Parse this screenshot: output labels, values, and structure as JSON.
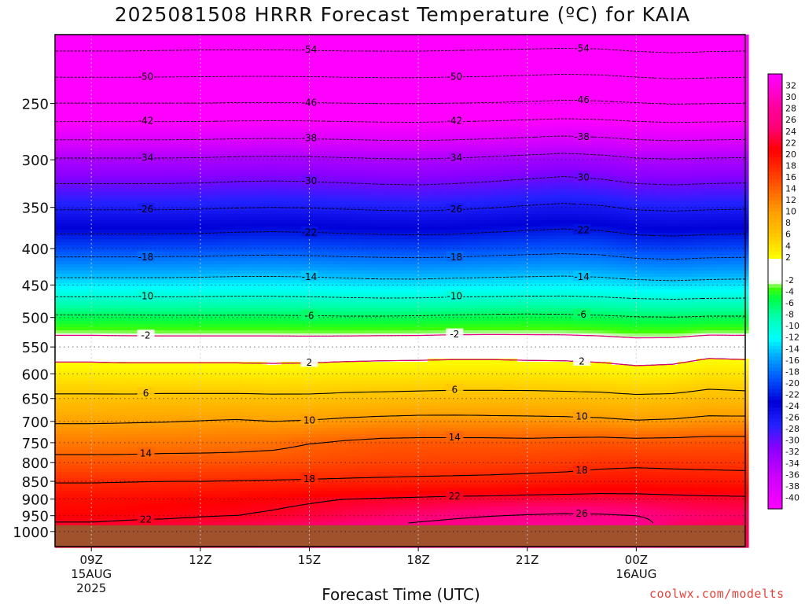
{
  "title": "2025081508 HRRR Forecast Temperature (ºC) for KAIA",
  "credit": "coolwx.com/modelts",
  "chart_data": {
    "type": "contour",
    "title": "2025081508 HRRR Forecast Temperature (ºC) for KAIA",
    "xlabel": "Forecast Time (UTC)",
    "ylabel": "",
    "x_hours": [
      0,
      1,
      2,
      3,
      4,
      5,
      6,
      7,
      8,
      9,
      10,
      11,
      12,
      13,
      14,
      15,
      16,
      17,
      18
    ],
    "xlim": [
      -1,
      18
    ],
    "x_ticks": [
      {
        "hour": 0,
        "label": "09Z",
        "date": "15AUG",
        "year": "2025"
      },
      {
        "hour": 3,
        "label": "12Z",
        "date": "",
        "year": ""
      },
      {
        "hour": 6,
        "label": "15Z",
        "date": "",
        "year": ""
      },
      {
        "hour": 9,
        "label": "18Z",
        "date": "",
        "year": ""
      },
      {
        "hour": 12,
        "label": "21Z",
        "date": "",
        "year": ""
      },
      {
        "hour": 15,
        "label": "00Z",
        "date": "16AUG",
        "year": ""
      }
    ],
    "y_axis": "pressure (hPa), log scale",
    "ylim": [
      1050,
      200
    ],
    "y_ticks": [
      "250",
      "300",
      "350",
      "400",
      "450",
      "500",
      "550",
      "600",
      "650",
      "700",
      "750",
      "800",
      "850",
      "900",
      "950",
      "1000"
    ],
    "ground_pressure": 980,
    "ground_color": "#a0522d",
    "levels": [
      {
        "p": 980,
        "t": [
          22.5,
          22.8,
          23.0,
          23.2,
          23.5,
          24.0,
          24.6,
          25.3,
          26.0,
          26.6,
          27.2,
          27.7,
          28.0,
          28.1,
          28.0,
          27.6,
          24.5,
          24.0,
          23.8
        ]
      },
      {
        "p": 950,
        "t": [
          21.0,
          21.3,
          21.5,
          21.8,
          22.0,
          22.4,
          23.0,
          23.6,
          24.2,
          24.8,
          25.4,
          25.9,
          26.2,
          26.4,
          26.3,
          26.0,
          25.0,
          24.5,
          24.3
        ]
      },
      {
        "p": 900,
        "t": [
          20.0,
          20.3,
          20.5,
          20.7,
          20.9,
          21.2,
          21.6,
          22.0,
          22.2,
          22.4,
          22.6,
          22.7,
          22.9,
          23.0,
          23.1,
          23.0,
          22.8,
          22.6,
          22.5
        ]
      },
      {
        "p": 850,
        "t": [
          17.8,
          17.9,
          18.0,
          18.0,
          18.1,
          18.2,
          18.3,
          18.4,
          18.5,
          18.6,
          18.7,
          18.8,
          19.0,
          19.2,
          19.5,
          19.6,
          19.4,
          19.3,
          19.2
        ]
      },
      {
        "p": 800,
        "t": [
          15.0,
          15.0,
          15.1,
          15.1,
          15.2,
          15.3,
          15.6,
          16.0,
          16.2,
          16.3,
          16.4,
          16.5,
          16.6,
          16.8,
          17.2,
          17.4,
          17.3,
          17.2,
          17.1
        ]
      },
      {
        "p": 750,
        "t": [
          12.5,
          12.6,
          12.7,
          12.8,
          12.9,
          13.2,
          13.9,
          14.4,
          14.8,
          14.9,
          14.9,
          14.9,
          14.8,
          15.0,
          15.2,
          15.0,
          15.1,
          15.3,
          15.3
        ]
      },
      {
        "p": 700,
        "t": [
          9.7,
          9.8,
          9.9,
          10.1,
          10.3,
          10.0,
          10.2,
          10.6,
          10.9,
          11.1,
          11.1,
          11.0,
          10.9,
          10.8,
          10.6,
          10.2,
          10.4,
          10.9,
          10.9
        ]
      },
      {
        "p": 650,
        "t": [
          6.6,
          6.6,
          6.7,
          6.7,
          6.7,
          6.6,
          6.6,
          6.8,
          6.9,
          7.0,
          7.1,
          7.1,
          7.1,
          7.0,
          6.9,
          6.6,
          6.7,
          7.2,
          7.0
        ]
      },
      {
        "p": 600,
        "t": [
          3.4,
          3.3,
          3.3,
          3.3,
          3.3,
          3.2,
          3.3,
          3.5,
          3.6,
          3.7,
          3.8,
          3.8,
          3.7,
          3.6,
          3.4,
          3.0,
          3.2,
          4.0,
          3.8
        ]
      },
      {
        "p": 550,
        "t": [
          0.2,
          0.1,
          0.1,
          0.1,
          0.1,
          0.1,
          0.1,
          0.2,
          0.3,
          0.3,
          0.4,
          0.4,
          0.3,
          0.3,
          0.1,
          -0.3,
          -0.2,
          0.5,
          0.4
        ]
      },
      {
        "p": 500,
        "t": [
          -5.4,
          -5.4,
          -5.5,
          -5.5,
          -5.5,
          -5.5,
          -5.6,
          -5.7,
          -5.7,
          -5.6,
          -5.4,
          -5.3,
          -5.2,
          -5.3,
          -5.5,
          -5.8,
          -5.9,
          -5.7,
          -5.7
        ]
      },
      {
        "p": 450,
        "t": [
          -12.6,
          -12.6,
          -12.6,
          -12.5,
          -12.4,
          -12.4,
          -12.5,
          -12.7,
          -12.9,
          -12.9,
          -12.7,
          -12.6,
          -12.5,
          -12.4,
          -12.6,
          -13.0,
          -13.2,
          -13.0,
          -12.9
        ]
      },
      {
        "p": 400,
        "t": [
          -19.6,
          -19.6,
          -19.5,
          -19.5,
          -19.3,
          -19.2,
          -19.3,
          -19.5,
          -19.6,
          -19.7,
          -19.6,
          -19.3,
          -19.1,
          -18.9,
          -19.1,
          -19.8,
          -20.0,
          -19.7,
          -19.6
        ]
      },
      {
        "p": 350,
        "t": [
          -26.4,
          -26.4,
          -26.4,
          -26.3,
          -26.1,
          -26.0,
          -26.1,
          -26.3,
          -26.5,
          -26.6,
          -26.4,
          -26.1,
          -25.7,
          -25.4,
          -25.7,
          -26.4,
          -26.6,
          -26.4,
          -26.3
        ]
      },
      {
        "p": 300,
        "t": [
          -33.6,
          -33.6,
          -33.6,
          -33.5,
          -33.3,
          -33.2,
          -33.3,
          -33.5,
          -33.7,
          -33.8,
          -33.6,
          -33.3,
          -32.9,
          -32.5,
          -32.9,
          -33.6,
          -33.8,
          -33.6,
          -33.5
        ]
      },
      {
        "p": 250,
        "t": [
          -46.0,
          -46.0,
          -46.0,
          -46.0,
          -45.9,
          -45.9,
          -45.9,
          -46.0,
          -46.1,
          -46.1,
          -46.0,
          -45.9,
          -45.7,
          -45.5,
          -45.6,
          -45.9,
          -46.2,
          -46.1,
          -46.0
        ]
      },
      {
        "p": 200,
        "t": [
          -56.5,
          -56.5,
          -56.4,
          -56.3,
          -56.3,
          -56.3,
          -56.4,
          -56.5,
          -56.5,
          -56.5,
          -56.4,
          -56.3,
          -56.2,
          -56.1,
          -56.2,
          -56.6,
          -56.8,
          -56.6,
          -56.5
        ]
      }
    ],
    "contour_interval": 4,
    "contour_style": "solid for > 0, magenta for 2 and -2 bounds, dashed for < 0",
    "colorbar": {
      "min": -42,
      "max": 34,
      "labels": [
        "32",
        "30",
        "28",
        "26",
        "24",
        "22",
        "20",
        "18",
        "16",
        "14",
        "12",
        "10",
        "8",
        "6",
        "4",
        "2",
        "-2",
        "-4",
        "-6",
        "-8",
        "-10",
        "-12",
        "-14",
        "-16",
        "-18",
        "-20",
        "-22",
        "-24",
        "-26",
        "-28",
        "-30",
        "-32",
        "-34",
        "-36",
        "-38",
        "-40"
      ],
      "colors": [
        {
          "t": -42,
          "c": "#ff00ff"
        },
        {
          "t": -36,
          "c": "#cc00ff"
        },
        {
          "t": -31,
          "c": "#8800ff"
        },
        {
          "t": -27,
          "c": "#2222ff"
        },
        {
          "t": -23,
          "c": "#0000d8"
        },
        {
          "t": -19,
          "c": "#0055ff"
        },
        {
          "t": -15,
          "c": "#00aaff"
        },
        {
          "t": -12,
          "c": "#00ffff"
        },
        {
          "t": -8,
          "c": "#00ffaa"
        },
        {
          "t": -5,
          "c": "#00ff44"
        },
        {
          "t": -3,
          "c": "#44ff00"
        },
        {
          "t": -2,
          "c": "#ffffff"
        },
        {
          "t": 2,
          "c": "#ffffff"
        },
        {
          "t": 2.01,
          "c": "#ffff00"
        },
        {
          "t": 6,
          "c": "#ffc800"
        },
        {
          "t": 10,
          "c": "#ffa000"
        },
        {
          "t": 14,
          "c": "#ff6400"
        },
        {
          "t": 18,
          "c": "#ff2800"
        },
        {
          "t": 21,
          "c": "#ff0000"
        },
        {
          "t": 25,
          "c": "#ff0078"
        },
        {
          "t": 28,
          "c": "#ff0096"
        },
        {
          "t": 34,
          "c": "#ff00ff"
        }
      ]
    }
  }
}
